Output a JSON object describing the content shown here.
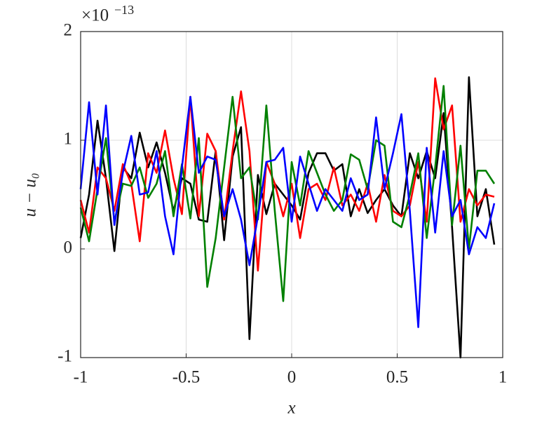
{
  "chart_data": {
    "type": "line",
    "xlabel": "x",
    "ylabel": "u − u₀",
    "y_multiplier": "×10",
    "y_exponent": "−13",
    "x": [
      -1,
      -0.96,
      -0.92,
      -0.88,
      -0.84,
      -0.8,
      -0.76,
      -0.72,
      -0.68,
      -0.64,
      -0.6,
      -0.56,
      -0.52,
      -0.48,
      -0.44,
      -0.4,
      -0.36,
      -0.32,
      -0.28,
      -0.24,
      -0.2,
      -0.16,
      -0.12,
      -0.08,
      -0.04,
      0,
      0.04,
      0.08,
      0.12,
      0.16,
      0.2,
      0.24,
      0.28,
      0.32,
      0.36,
      0.4,
      0.44,
      0.48,
      0.52,
      0.56,
      0.6,
      0.64,
      0.68,
      0.72,
      0.76,
      0.8,
      0.84,
      0.88,
      0.92,
      0.96
    ],
    "series": [
      {
        "name": "black",
        "color": "#000000",
        "values": [
          0.1,
          0.5,
          1.18,
          0.65,
          -0.02,
          0.75,
          0.65,
          1.07,
          0.75,
          0.98,
          0.7,
          0.35,
          0.65,
          0.6,
          0.27,
          0.25,
          0.9,
          0.08,
          0.85,
          1.12,
          -0.83,
          0.68,
          0.32,
          0.6,
          0.5,
          0.4,
          0.27,
          0.7,
          0.88,
          0.88,
          0.72,
          0.78,
          0.3,
          0.55,
          0.33,
          0.45,
          0.55,
          0.4,
          0.3,
          0.88,
          0.65,
          0.9,
          0.65,
          1.25,
          0.2,
          -1.0,
          1.58,
          0.3,
          0.55,
          0.04
        ]
      },
      {
        "name": "red",
        "color": "#ff0000",
        "values": [
          0.45,
          0.15,
          0.75,
          0.65,
          0.35,
          0.78,
          0.6,
          0.07,
          0.88,
          0.7,
          1.09,
          0.65,
          0.32,
          1.4,
          0.3,
          1.06,
          0.9,
          0.27,
          0.9,
          1.45,
          0.9,
          -0.2,
          0.8,
          0.6,
          0.3,
          0.6,
          0.1,
          0.55,
          0.6,
          0.45,
          0.75,
          0.4,
          0.5,
          0.35,
          0.6,
          0.25,
          0.68,
          0.35,
          0.3,
          0.4,
          0.8,
          0.25,
          1.57,
          1.1,
          1.32,
          0.25,
          0.55,
          0.4,
          0.5,
          0.48
        ]
      },
      {
        "name": "green",
        "color": "#008000",
        "values": [
          0.38,
          0.07,
          0.55,
          1.02,
          0.25,
          0.6,
          0.58,
          0.75,
          0.47,
          0.6,
          0.9,
          0.3,
          0.78,
          0.28,
          1.02,
          -0.35,
          0.1,
          0.75,
          1.4,
          0.65,
          0.75,
          0.27,
          1.32,
          0.35,
          -0.48,
          0.8,
          0.4,
          0.9,
          0.7,
          0.5,
          0.35,
          0.45,
          0.87,
          0.82,
          0.55,
          1.0,
          0.95,
          0.25,
          0.2,
          0.5,
          0.88,
          0.1,
          0.75,
          1.5,
          0.22,
          0.95,
          0.0,
          0.72,
          0.72,
          0.6
        ]
      },
      {
        "name": "blue",
        "color": "#0000ff",
        "values": [
          0.55,
          1.35,
          0.5,
          1.32,
          0.22,
          0.7,
          1.04,
          0.5,
          0.52,
          0.9,
          0.3,
          -0.05,
          0.75,
          1.4,
          0.7,
          0.85,
          0.82,
          0.3,
          0.55,
          0.27,
          -0.15,
          0.3,
          0.8,
          0.82,
          0.93,
          0.25,
          0.85,
          0.6,
          0.35,
          0.55,
          0.45,
          0.35,
          0.65,
          0.45,
          0.5,
          1.21,
          0.55,
          0.88,
          1.24,
          0.35,
          -0.72,
          0.93,
          0.15,
          0.9,
          0.3,
          0.45,
          -0.05,
          0.2,
          0.1,
          0.42
        ]
      }
    ],
    "xlim": [
      -1,
      1
    ],
    "xticks": [
      -1,
      -0.5,
      0,
      0.5,
      1
    ],
    "ylim": [
      -1,
      2
    ],
    "yticks": [
      -1,
      0,
      1,
      2
    ],
    "grid": true
  }
}
